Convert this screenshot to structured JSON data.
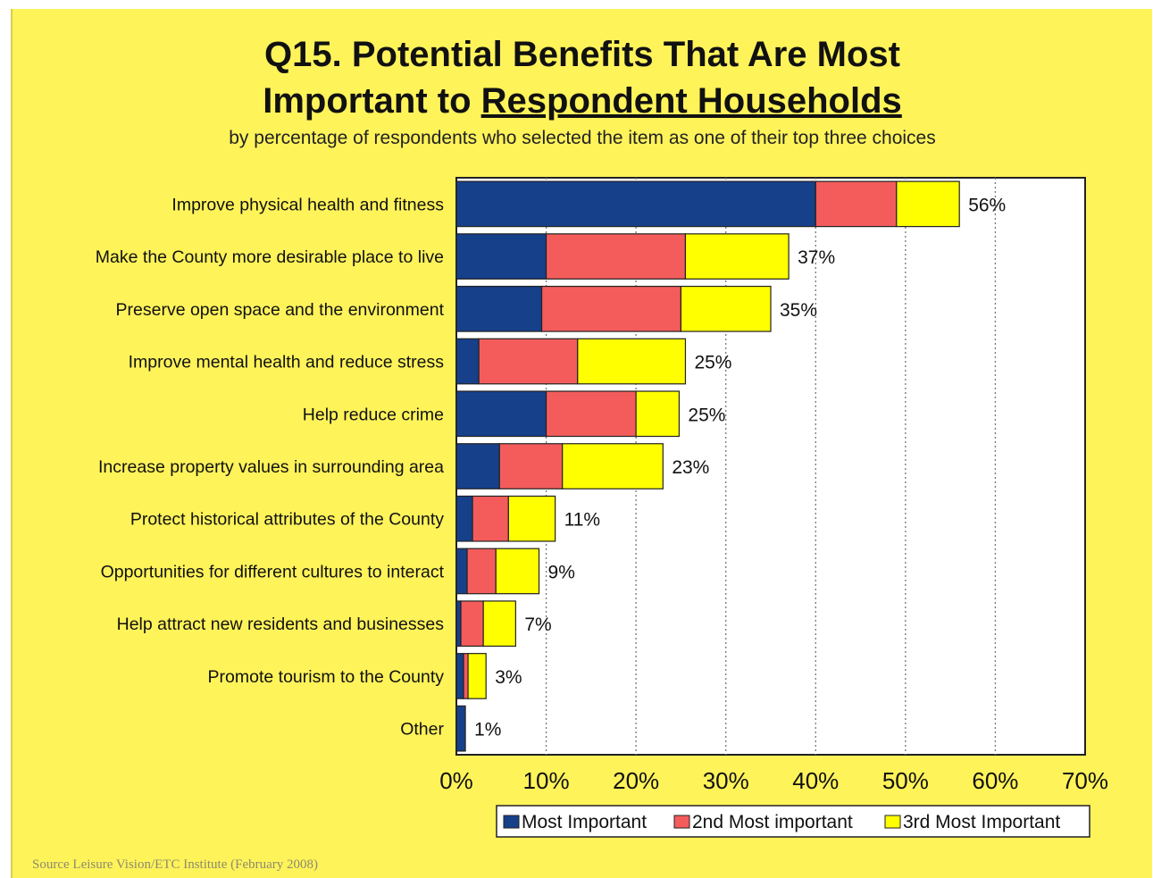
{
  "chart_data": {
    "type": "bar",
    "orientation": "horizontal",
    "stacked": true,
    "title_line1": "Q15. Potential Benefits That Are Most",
    "title_line2_prefix": "Important to ",
    "title_line2_underlined": "Respondent Households",
    "subtitle": "by percentage of respondents who selected the item as one of their top three choices",
    "categories": [
      "Improve physical health and fitness",
      "Make the County more desirable place to live",
      "Preserve open space and the environment",
      "Improve mental health and reduce stress",
      "Help reduce crime",
      "Increase property values in surrounding area",
      "Protect historical attributes of the County",
      "Opportunities for different cultures to interact",
      "Help attract new residents and businesses",
      "Promote tourism to the County",
      "Other"
    ],
    "series": [
      {
        "name": "Most Important",
        "color": "#16408a",
        "values": [
          40,
          10,
          9.5,
          2.5,
          10,
          4.8,
          1.8,
          1.2,
          0.5,
          0.8,
          1
        ]
      },
      {
        "name": "2nd Most important",
        "color": "#f45c5c",
        "values": [
          9,
          15.5,
          15.5,
          11,
          10,
          7,
          4,
          3.2,
          2.5,
          0.5,
          0
        ]
      },
      {
        "name": "3rd Most Important",
        "color": "#ffff00",
        "values": [
          7,
          11.5,
          10,
          12,
          4.8,
          11.2,
          5.2,
          4.8,
          3.6,
          2,
          0
        ]
      }
    ],
    "data_labels": [
      "56%",
      "37%",
      "35%",
      "25%",
      "25%",
      "23%",
      "11%",
      "9%",
      "7%",
      "3%",
      "1%"
    ],
    "xlim": [
      0,
      70
    ],
    "x_ticks": [
      "0%",
      "10%",
      "20%",
      "30%",
      "40%",
      "50%",
      "60%",
      "70%"
    ],
    "grid": "vertical dotted",
    "legend_position": "bottom"
  },
  "source": "Source Leisure Vision/ETC Institute (February 2008)"
}
